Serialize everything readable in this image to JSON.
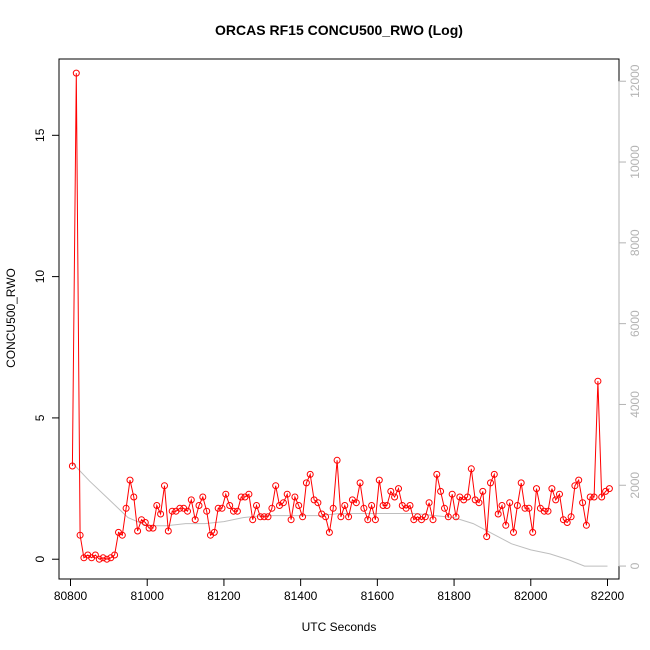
{
  "chart_data": {
    "type": "line",
    "title": "ORCAS RF15 CONCU500_RWO (Log)",
    "xlabel": "UTC Seconds",
    "ylabel": "CONCU500_RWO",
    "xlim": [
      80770,
      82230
    ],
    "ylim": [
      -0.7,
      17.7
    ],
    "y2lim": [
      -320,
      12550
    ],
    "x_ticks": [
      80800,
      81000,
      81200,
      81400,
      81600,
      81800,
      82000,
      82200
    ],
    "y_ticks": [
      0,
      5,
      10,
      15
    ],
    "y2_ticks": [
      0,
      2000,
      4000,
      6000,
      8000,
      10000,
      12000
    ],
    "colors": {
      "series": "#ff0000",
      "secondary": "#bebebe",
      "axis": "#000000",
      "right_axis": "#b3b3b3"
    },
    "series": [
      {
        "values_x": [
          80805,
          80815,
          80825,
          80835,
          80845,
          80855,
          80865,
          80875,
          80885,
          80895,
          80905,
          80915,
          80925,
          80935,
          80945,
          80955,
          80965,
          80975,
          80985,
          80995,
          81005,
          81015,
          81025,
          81035,
          81045,
          81055,
          81065,
          81075,
          81085,
          81095,
          81105,
          81115,
          81125,
          81135,
          81145,
          81155,
          81165,
          81175,
          81185,
          81195,
          81205,
          81215,
          81225,
          81235,
          81245,
          81255,
          81265,
          81275,
          81285,
          81295,
          81305,
          81315,
          81325,
          81335,
          81345,
          81355,
          81365,
          81375,
          81385,
          81395,
          81405,
          81415,
          81425,
          81435,
          81445,
          81455,
          81465,
          81475,
          81485,
          81495,
          81505,
          81515,
          81525,
          81535,
          81545,
          81555,
          81565,
          81575,
          81585,
          81595,
          81605,
          81615,
          81625,
          81635,
          81645,
          81655,
          81665,
          81675,
          81685,
          81695,
          81705,
          81715,
          81725,
          81735,
          81745,
          81755,
          81765,
          81775,
          81785,
          81795,
          81805,
          81815,
          81825,
          81835,
          81845,
          81855,
          81865,
          81875,
          81885,
          81895,
          81905,
          81915,
          81925,
          81935,
          81945,
          81955,
          81965,
          81975,
          81985,
          81995,
          82005,
          82015,
          82025,
          82035,
          82045,
          82055,
          82065,
          82075,
          82085,
          82095,
          82105,
          82115,
          82125,
          82135,
          82145,
          82155,
          82165,
          82175,
          82185,
          82195,
          82205
        ],
        "values_y": [
          3.3,
          17.2,
          0.85,
          0.05,
          0.15,
          0.05,
          0.15,
          0.0,
          0.05,
          0.0,
          0.05,
          0.15,
          0.95,
          0.85,
          1.8,
          2.8,
          2.2,
          1.0,
          1.4,
          1.3,
          1.1,
          1.1,
          1.9,
          1.6,
          2.6,
          1.0,
          1.7,
          1.7,
          1.8,
          1.8,
          1.7,
          2.1,
          1.4,
          1.9,
          2.2,
          1.7,
          0.85,
          0.95,
          1.8,
          1.8,
          2.3,
          1.9,
          1.7,
          1.7,
          2.2,
          2.2,
          2.3,
          1.4,
          1.9,
          1.5,
          1.5,
          1.5,
          1.8,
          2.6,
          1.9,
          2.0,
          2.3,
          1.4,
          2.2,
          1.9,
          1.5,
          2.7,
          3.0,
          2.1,
          2.0,
          1.6,
          1.5,
          0.95,
          1.8,
          3.5,
          1.5,
          1.9,
          1.5,
          2.1,
          2.0,
          2.7,
          1.8,
          1.4,
          1.9,
          1.4,
          2.8,
          1.9,
          1.9,
          2.4,
          2.2,
          2.5,
          1.9,
          1.8,
          1.9,
          1.4,
          1.5,
          1.4,
          1.5,
          2.0,
          1.4,
          3.0,
          2.4,
          1.8,
          1.5,
          2.3,
          1.5,
          2.2,
          2.1,
          2.2,
          3.2,
          2.1,
          2.0,
          2.4,
          0.8,
          2.7,
          3.0,
          1.6,
          1.9,
          1.2,
          2.0,
          0.95,
          1.9,
          2.7,
          1.8,
          1.8,
          0.95,
          2.5,
          1.8,
          1.7,
          1.7,
          2.5,
          2.1,
          2.3,
          1.4,
          1.3,
          1.5,
          2.6,
          2.8,
          2.0,
          1.2,
          2.2,
          2.2,
          6.3,
          2.2,
          2.4,
          2.5
        ]
      },
      {
        "axis": "right",
        "values_x": [
          80805,
          80850,
          80900,
          80950,
          81000,
          81050,
          81100,
          81150,
          81200,
          81250,
          81300,
          81350,
          81400,
          81450,
          81500,
          81550,
          81600,
          81650,
          81700,
          81750,
          81800,
          81850,
          81900,
          81950,
          82000,
          82050,
          82100,
          82140,
          82200
        ],
        "values_y": [
          2550,
          2100,
          1650,
          1200,
          1000,
          1000,
          1050,
          1050,
          1100,
          1200,
          1250,
          1250,
          1250,
          1250,
          1300,
          1300,
          1300,
          1300,
          1300,
          1250,
          1200,
          1050,
          800,
          550,
          400,
          300,
          150,
          0,
          0
        ]
      }
    ]
  }
}
